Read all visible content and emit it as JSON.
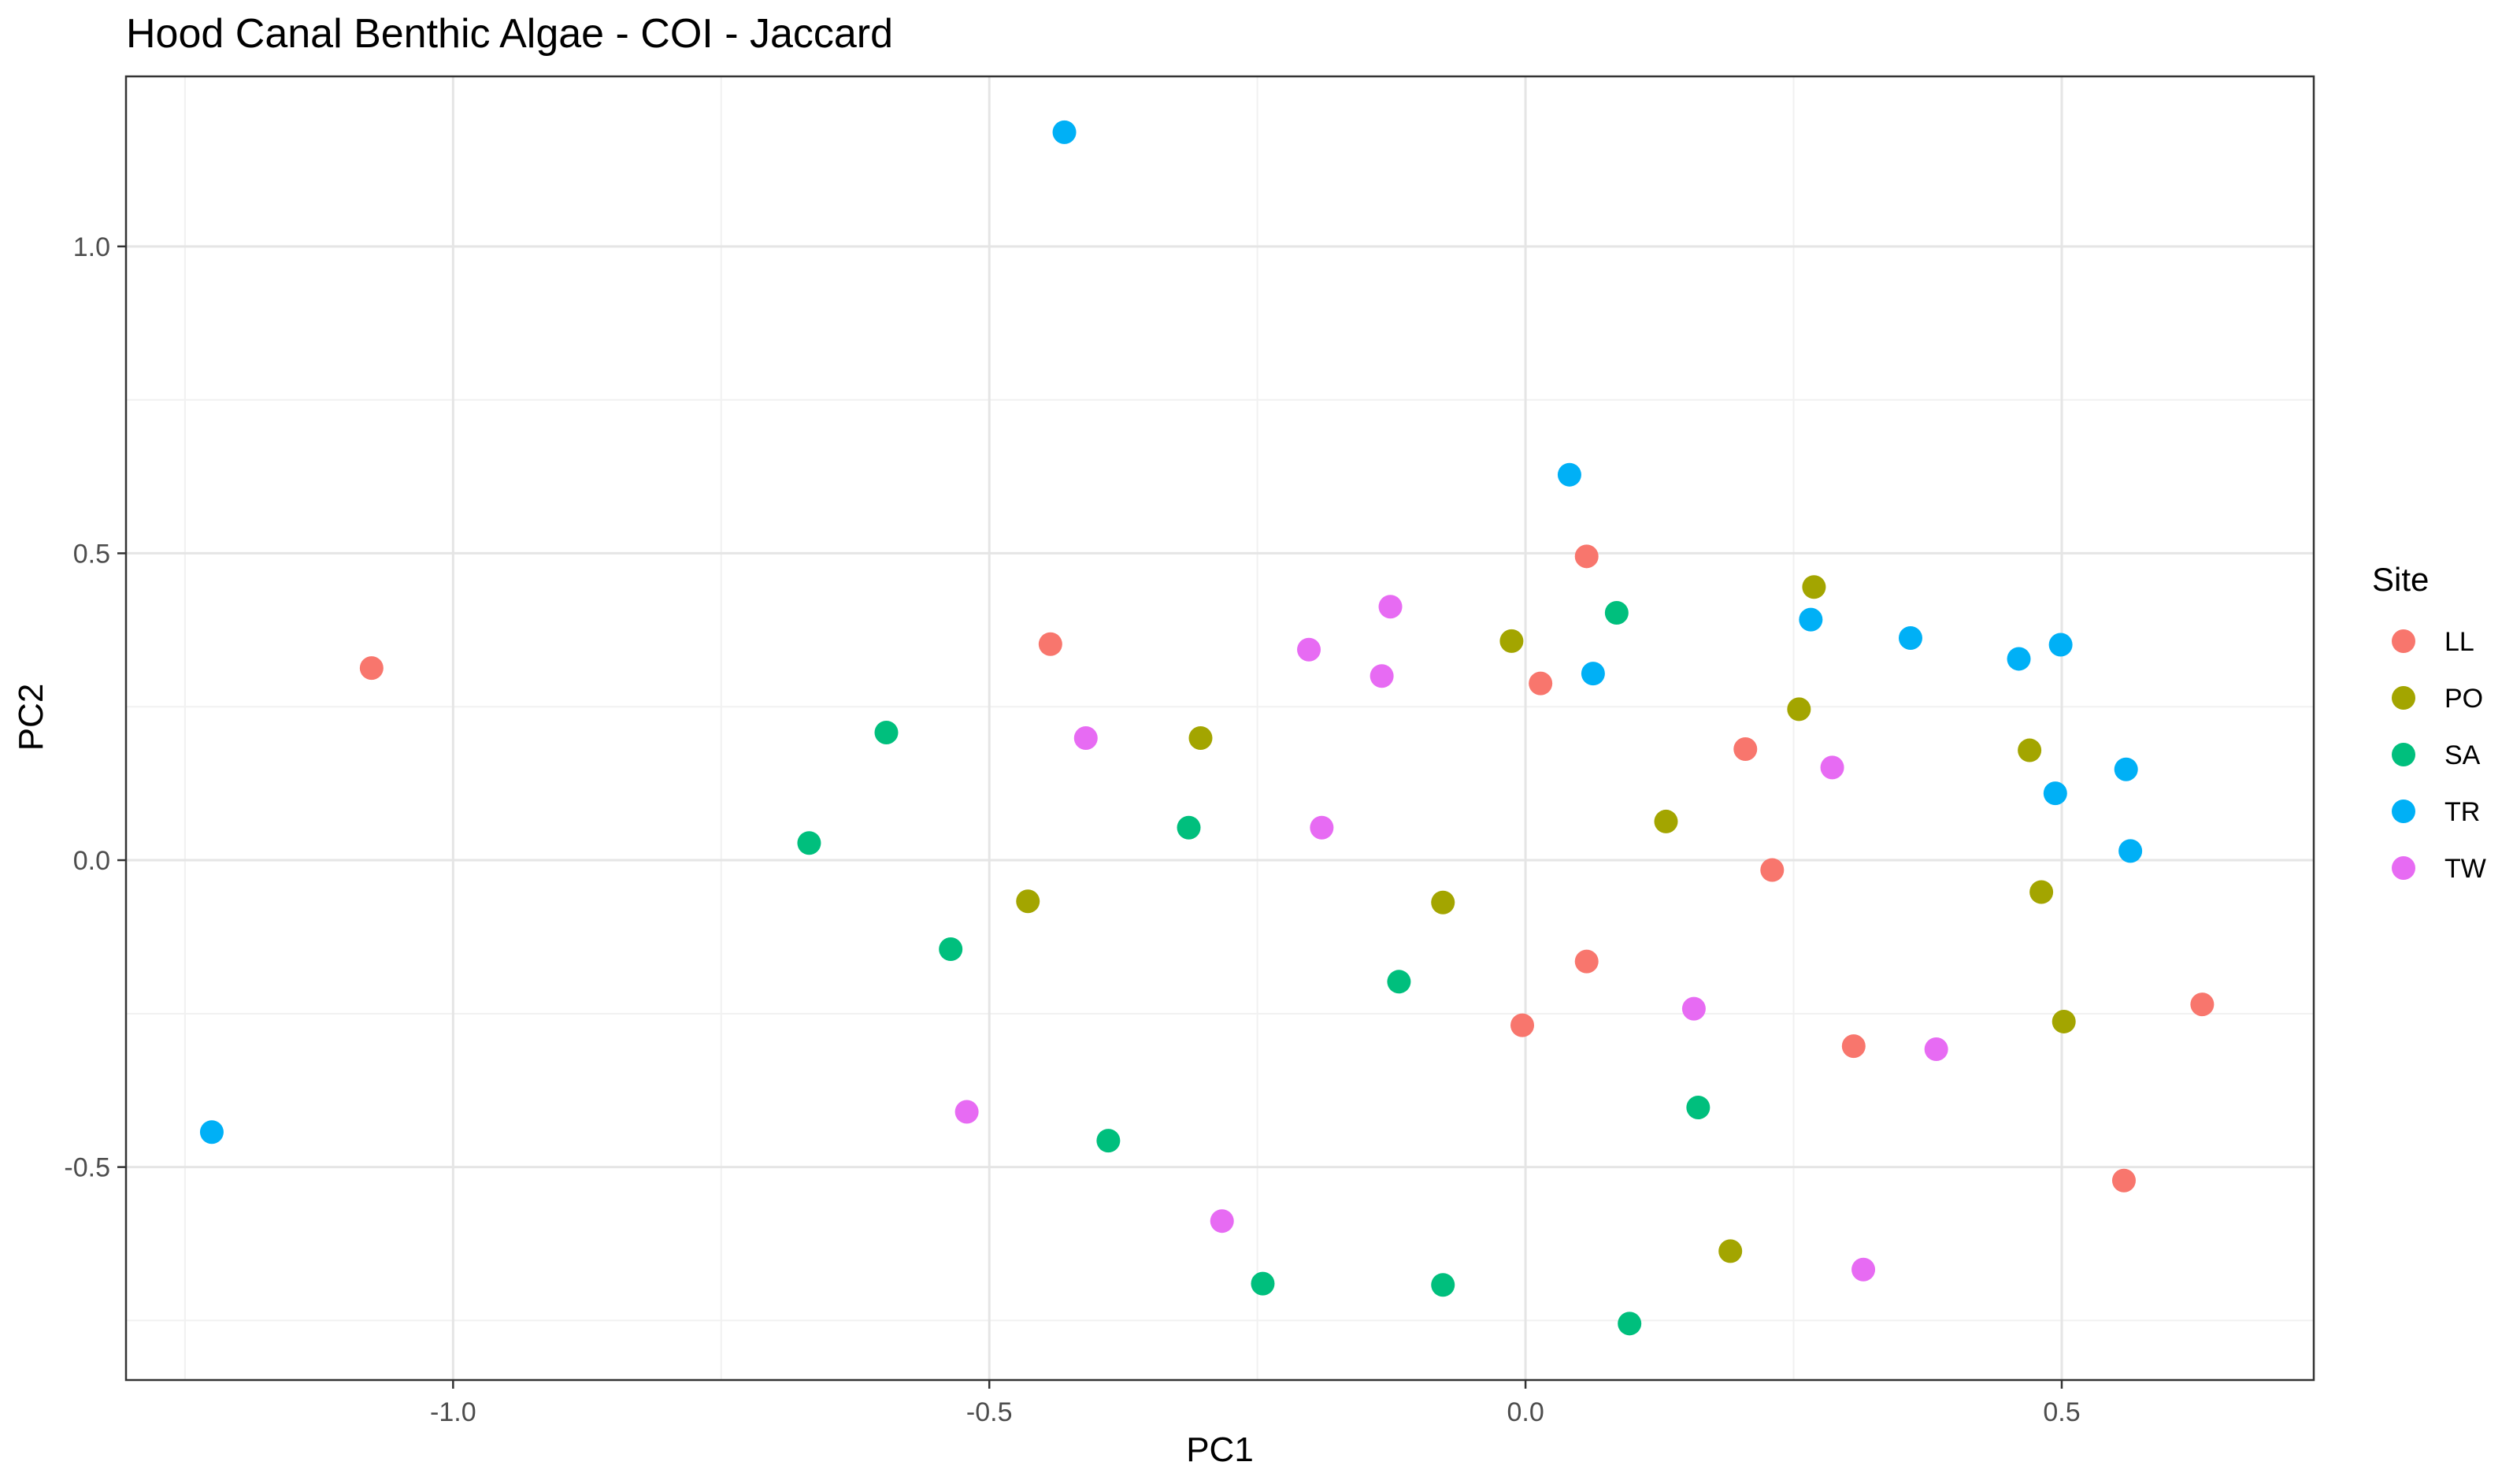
{
  "chart_data": {
    "type": "scatter",
    "title": "Hood Canal Benthic Algae - COI - Jaccard",
    "xlabel": "PC1",
    "ylabel": "PC2",
    "xlim": [
      -1.305,
      0.735
    ],
    "ylim": [
      -0.847,
      1.277
    ],
    "x_ticks": [
      -1.0,
      -0.5,
      0.0,
      0.5
    ],
    "x_tick_labels": [
      "-1.0",
      "-0.5",
      "0.0",
      "0.5"
    ],
    "y_ticks": [
      -0.5,
      0.0,
      0.5,
      1.0
    ],
    "y_tick_labels": [
      "-0.5",
      "0.0",
      "0.5",
      "1.0"
    ],
    "x_minor_ticks": [
      -1.25,
      -0.75,
      -0.25,
      0.25
    ],
    "y_minor_ticks": [
      -0.75,
      -0.25,
      0.25,
      0.75
    ],
    "grid": true,
    "legend": {
      "title": "Site",
      "position": "right"
    },
    "series": [
      {
        "name": "LL",
        "color": "#F8766D",
        "points": [
          [
            -1.076,
            0.313
          ],
          [
            -0.443,
            0.352
          ],
          [
            0.057,
            0.495
          ],
          [
            0.014,
            0.288
          ],
          [
            0.205,
            0.181
          ],
          [
            0.23,
            -0.016
          ],
          [
            0.057,
            -0.165
          ],
          [
            -0.003,
            -0.269
          ],
          [
            0.306,
            -0.303
          ],
          [
            0.631,
            -0.235
          ],
          [
            0.558,
            -0.522
          ]
        ]
      },
      {
        "name": "PO",
        "color": "#A3A500",
        "points": [
          [
            0.269,
            0.445
          ],
          [
            -0.013,
            0.357
          ],
          [
            0.255,
            0.246
          ],
          [
            -0.303,
            0.199
          ],
          [
            0.131,
            0.063
          ],
          [
            0.47,
            0.179
          ],
          [
            -0.464,
            -0.067
          ],
          [
            -0.077,
            -0.069
          ],
          [
            0.481,
            -0.052
          ],
          [
            0.502,
            -0.263
          ],
          [
            0.191,
            -0.637
          ]
        ]
      },
      {
        "name": "SA",
        "color": "#00BF7D",
        "points": [
          [
            0.085,
            0.403
          ],
          [
            -0.596,
            0.208
          ],
          [
            -0.668,
            0.028
          ],
          [
            -0.314,
            0.053
          ],
          [
            -0.536,
            -0.145
          ],
          [
            -0.118,
            -0.198
          ],
          [
            0.161,
            -0.403
          ],
          [
            -0.389,
            -0.457
          ],
          [
            -0.245,
            -0.69
          ],
          [
            -0.077,
            -0.692
          ],
          [
            0.097,
            -0.755
          ]
        ]
      },
      {
        "name": "TR",
        "color": "#00B0F6",
        "points": [
          [
            -0.43,
            1.186
          ],
          [
            0.041,
            0.628
          ],
          [
            0.266,
            0.392
          ],
          [
            0.063,
            0.304
          ],
          [
            0.359,
            0.362
          ],
          [
            0.46,
            0.328
          ],
          [
            0.499,
            0.351
          ],
          [
            0.56,
            0.148
          ],
          [
            0.494,
            0.109
          ],
          [
            0.564,
            0.015
          ],
          [
            -1.225,
            -0.443
          ]
        ]
      },
      {
        "name": "TW",
        "color": "#E76BF3",
        "points": [
          [
            -0.126,
            0.413
          ],
          [
            -0.202,
            0.343
          ],
          [
            -0.134,
            0.3
          ],
          [
            -0.41,
            0.199
          ],
          [
            0.286,
            0.151
          ],
          [
            -0.19,
            0.053
          ],
          [
            0.157,
            -0.242
          ],
          [
            0.383,
            -0.308
          ],
          [
            -0.521,
            -0.41
          ],
          [
            -0.283,
            -0.588
          ],
          [
            0.315,
            -0.667
          ]
        ]
      }
    ]
  }
}
